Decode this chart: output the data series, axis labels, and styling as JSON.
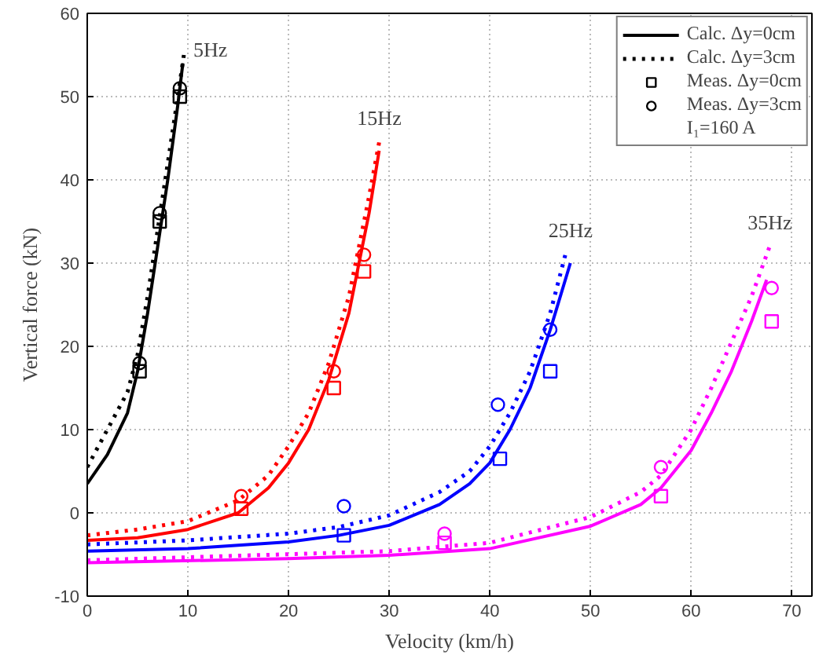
{
  "chart_data": {
    "type": "line",
    "xlabel": "Velocity (km/h)",
    "ylabel": "Vertical force (kN)",
    "xlim": [
      0,
      72
    ],
    "ylim": [
      -10,
      60
    ],
    "xticks": [
      0,
      10,
      20,
      30,
      40,
      50,
      60,
      70
    ],
    "yticks": [
      -10,
      0,
      10,
      20,
      30,
      40,
      50,
      60
    ],
    "grid": true,
    "legend": "top right",
    "legend_title": "I₁=160 A",
    "annotations": [
      "5Hz",
      "15Hz",
      "25Hz",
      "35Hz"
    ],
    "series": [
      {
        "name": "Calc. Δy=0cm",
        "color": "#000000",
        "line_style": "solid",
        "x": [
          0,
          2,
          4,
          5,
          6,
          7,
          8,
          9,
          9.5
        ],
        "values": [
          3.5,
          7,
          12,
          17,
          24,
          32,
          40,
          49,
          54
        ]
      },
      {
        "name": "Calc. Δy=3cm",
        "color": "#000000",
        "line_style": "dotted",
        "x": [
          0,
          2,
          4,
          5,
          6,
          7,
          8,
          9,
          9.6
        ],
        "values": [
          5.5,
          10,
          14.5,
          19,
          26,
          34,
          42,
          50,
          55
        ]
      },
      {
        "type": "scatter",
        "name": "Meas. Δy=0cm",
        "color": "#000000",
        "marker": "square",
        "x": [
          5.2,
          7.2,
          9.2
        ],
        "values": [
          17,
          35,
          50
        ]
      },
      {
        "type": "scatter",
        "name": "Meas. Δy=3cm",
        "color": "#000000",
        "marker": "circle",
        "x": [
          5.2,
          7.2,
          9.2
        ],
        "values": [
          18,
          36,
          51
        ]
      },
      {
        "color": "#ff0000",
        "line_style": "solid",
        "x": [
          0,
          5,
          10,
          15,
          18,
          20,
          22,
          24,
          26,
          28,
          29
        ],
        "values": [
          -3.3,
          -3,
          -2,
          0,
          3,
          6,
          10,
          16,
          24,
          36,
          43.5
        ]
      },
      {
        "color": "#ff0000",
        "line_style": "dotted",
        "x": [
          0,
          5,
          10,
          15,
          18,
          20,
          22,
          24,
          26,
          28,
          29
        ],
        "values": [
          -2.7,
          -2,
          -1,
          1.5,
          4.5,
          8,
          12,
          18,
          26,
          38,
          44.5
        ]
      },
      {
        "type": "scatter",
        "color": "#ff0000",
        "marker": "square",
        "x": [
          15.3,
          24.5,
          27.5
        ],
        "values": [
          0.5,
          15,
          29
        ]
      },
      {
        "type": "scatter",
        "color": "#ff0000",
        "marker": "circle",
        "x": [
          15.3,
          24.5,
          27.5
        ],
        "values": [
          2,
          17,
          31
        ]
      },
      {
        "color": "#0000ff",
        "line_style": "solid",
        "x": [
          0,
          10,
          20,
          25,
          30,
          35,
          38,
          40,
          42,
          44,
          46,
          48
        ],
        "values": [
          -4.6,
          -4.3,
          -3.5,
          -2.7,
          -1.5,
          1,
          3.5,
          6,
          10,
          15,
          22,
          30
        ]
      },
      {
        "color": "#0000ff",
        "line_style": "dotted",
        "x": [
          0,
          10,
          20,
          25,
          30,
          35,
          38,
          40,
          42,
          44,
          46,
          47.5
        ],
        "values": [
          -3.8,
          -3.3,
          -2.5,
          -1.7,
          -0.3,
          2.5,
          5,
          8,
          12,
          17,
          24,
          31
        ]
      },
      {
        "type": "scatter",
        "color": "#0000ff",
        "marker": "square",
        "x": [
          25.5,
          41,
          46
        ],
        "values": [
          -2.7,
          6.5,
          17
        ]
      },
      {
        "type": "scatter",
        "color": "#0000ff",
        "marker": "circle",
        "x": [
          25.5,
          40.8,
          46
        ],
        "values": [
          0.8,
          13,
          22
        ]
      },
      {
        "color": "#ff00ff",
        "line_style": "solid",
        "x": [
          0,
          20,
          30,
          40,
          50,
          55,
          57,
          60,
          62,
          64,
          66,
          67.5
        ],
        "values": [
          -6,
          -5.5,
          -5.1,
          -4.3,
          -1.6,
          1,
          3,
          7.5,
          12,
          17,
          23,
          28
        ]
      },
      {
        "color": "#ff00ff",
        "line_style": "dotted",
        "x": [
          0,
          30,
          40,
          50,
          55,
          57,
          60,
          62,
          64,
          66,
          67.8
        ],
        "values": [
          -5.7,
          -4.6,
          -3.6,
          -0.5,
          2.5,
          4.5,
          10,
          15,
          20.5,
          26,
          32
        ]
      },
      {
        "type": "scatter",
        "color": "#ff00ff",
        "marker": "square",
        "x": [
          35.5,
          57,
          68
        ],
        "values": [
          -3.6,
          2,
          23
        ]
      },
      {
        "type": "scatter",
        "color": "#ff00ff",
        "marker": "circle",
        "x": [
          35.5,
          57,
          68
        ],
        "values": [
          -2.5,
          5.5,
          27
        ]
      }
    ]
  }
}
